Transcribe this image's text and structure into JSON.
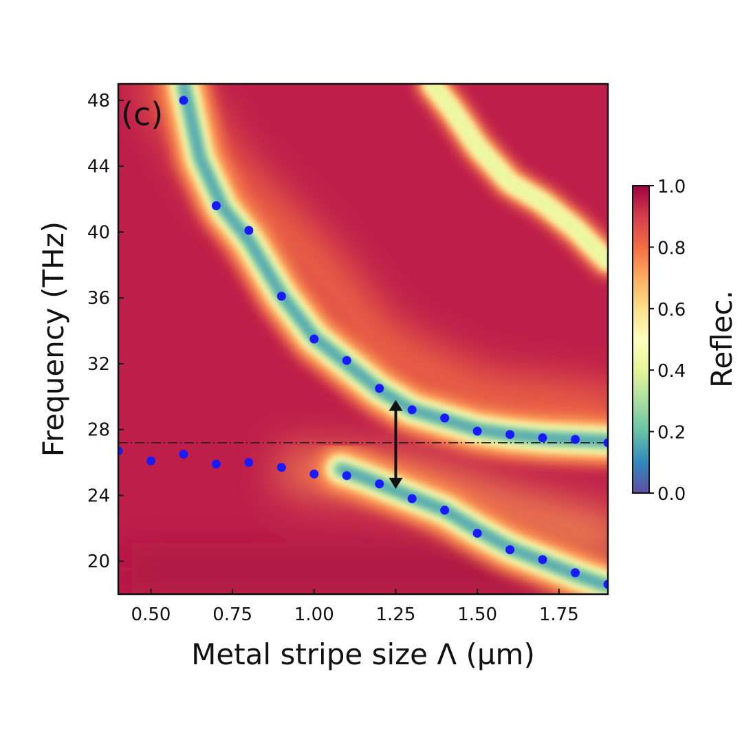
{
  "chart_data": {
    "type": "heatmap",
    "panel_label": "(c)",
    "xlabel": "Metal stripe size Λ (µm)",
    "ylabel": "Frequency (THz)",
    "xlim": [
      0.4,
      1.9
    ],
    "ylim": [
      18,
      49
    ],
    "x_ticks": [
      {
        "value": 0.5,
        "label": "0.50"
      },
      {
        "value": 0.75,
        "label": "0.75"
      },
      {
        "value": 1.0,
        "label": "1.00"
      },
      {
        "value": 1.25,
        "label": "1.25"
      },
      {
        "value": 1.5,
        "label": "1.50"
      },
      {
        "value": 1.75,
        "label": "1.75"
      }
    ],
    "y_ticks": [
      {
        "value": 20,
        "label": "20"
      },
      {
        "value": 24,
        "label": "24"
      },
      {
        "value": 28,
        "label": "28"
      },
      {
        "value": 32,
        "label": "32"
      },
      {
        "value": 36,
        "label": "36"
      },
      {
        "value": 40,
        "label": "40"
      },
      {
        "value": 44,
        "label": "44"
      },
      {
        "value": 48,
        "label": "48"
      }
    ],
    "colorbar": {
      "label": "Reflec.",
      "range": [
        0,
        1
      ],
      "colormap": "Spectral",
      "ticks": [
        {
          "value": 0.0,
          "label": "0.0"
        },
        {
          "value": 0.2,
          "label": "0.2"
        },
        {
          "value": 0.4,
          "label": "0.4"
        },
        {
          "value": 0.6,
          "label": "0.6"
        },
        {
          "value": 0.8,
          "label": "0.8"
        },
        {
          "value": 1.0,
          "label": "1.0"
        }
      ]
    },
    "heatmap_bands": [
      {
        "name": "upper-polariton-dip",
        "min_reflectance": 0.15,
        "path": [
          [
            0.6,
            49
          ],
          [
            0.65,
            44.5
          ],
          [
            0.72,
            41.5
          ],
          [
            0.8,
            39.5
          ],
          [
            0.9,
            36.2
          ],
          [
            1.0,
            33.6
          ],
          [
            1.1,
            32.0
          ],
          [
            1.2,
            30.4
          ],
          [
            1.3,
            29.2
          ],
          [
            1.4,
            28.6
          ],
          [
            1.5,
            28.0
          ],
          [
            1.6,
            27.7
          ],
          [
            1.7,
            27.5
          ],
          [
            1.8,
            27.4
          ],
          [
            1.9,
            27.3
          ]
        ]
      },
      {
        "name": "lower-polariton-dip",
        "min_reflectance": 0.15,
        "path": [
          [
            1.08,
            25.6
          ],
          [
            1.15,
            25.1
          ],
          [
            1.2,
            24.7
          ],
          [
            1.3,
            23.9
          ],
          [
            1.4,
            23.1
          ],
          [
            1.5,
            21.9
          ],
          [
            1.6,
            20.8
          ],
          [
            1.7,
            20.0
          ],
          [
            1.8,
            19.2
          ],
          [
            1.9,
            18.5
          ]
        ]
      },
      {
        "name": "higher-order-dip",
        "min_reflectance": 0.5,
        "path": [
          [
            1.36,
            49
          ],
          [
            1.42,
            47.5
          ],
          [
            1.5,
            45.2
          ],
          [
            1.6,
            43.0
          ],
          [
            1.7,
            41.8
          ],
          [
            1.8,
            40.2
          ],
          [
            1.9,
            38.2
          ]
        ]
      }
    ],
    "series": [
      {
        "name": "simulated modes",
        "color": "#1a1aff",
        "points": [
          [
            0.6,
            48.0
          ],
          [
            0.7,
            41.6
          ],
          [
            0.8,
            40.1
          ],
          [
            0.9,
            36.1
          ],
          [
            1.0,
            33.5
          ],
          [
            1.1,
            32.2
          ],
          [
            1.2,
            30.5
          ],
          [
            1.3,
            29.2
          ],
          [
            1.4,
            28.7
          ],
          [
            1.5,
            27.9
          ],
          [
            1.6,
            27.7
          ],
          [
            1.7,
            27.5
          ],
          [
            1.8,
            27.4
          ],
          [
            1.9,
            27.2
          ],
          [
            0.4,
            26.7
          ],
          [
            0.5,
            26.1
          ],
          [
            0.6,
            26.5
          ],
          [
            0.7,
            25.9
          ],
          [
            0.8,
            26.0
          ],
          [
            0.9,
            25.7
          ],
          [
            1.0,
            25.3
          ],
          [
            1.1,
            25.2
          ],
          [
            1.2,
            24.7
          ],
          [
            1.3,
            23.8
          ],
          [
            1.4,
            23.1
          ],
          [
            1.5,
            21.7
          ],
          [
            1.6,
            20.7
          ],
          [
            1.7,
            20.1
          ],
          [
            1.8,
            19.3
          ],
          [
            1.9,
            18.6
          ]
        ]
      }
    ],
    "reference_line": {
      "y": 27.2,
      "style": "dash-dot",
      "color": "#222222"
    },
    "splitting_arrow": {
      "x": 1.25,
      "y_from": 24.4,
      "y_to": 29.8,
      "color": "#111111"
    }
  }
}
